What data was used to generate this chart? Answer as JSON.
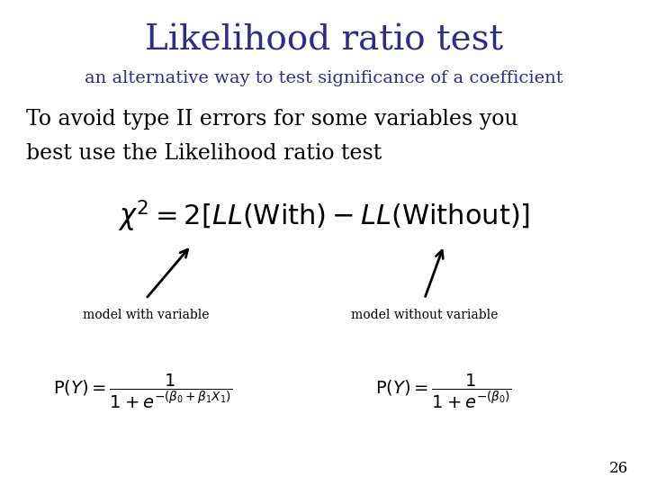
{
  "title": "Likelihood ratio test",
  "subtitle": "an alternative way to test significance of a coefficient",
  "title_color": "#2c2c8c",
  "subtitle_color": "#2c2c8c",
  "title_fontsize": 28,
  "subtitle_fontsize": 14,
  "body_line1": "To avoid type II errors for some variables you",
  "body_line2": "best use the Likelihood ratio test",
  "body_fontsize": 17,
  "body_color": "#000000",
  "formula_fontsize": 22,
  "label_left": "model with variable",
  "label_right": "model without variable",
  "label_fontsize": 10,
  "sub_formula_fontsize": 14,
  "page_number": "26",
  "bg_color": "#ffffff",
  "arrow_color": "#000000",
  "text_color": "#000000"
}
